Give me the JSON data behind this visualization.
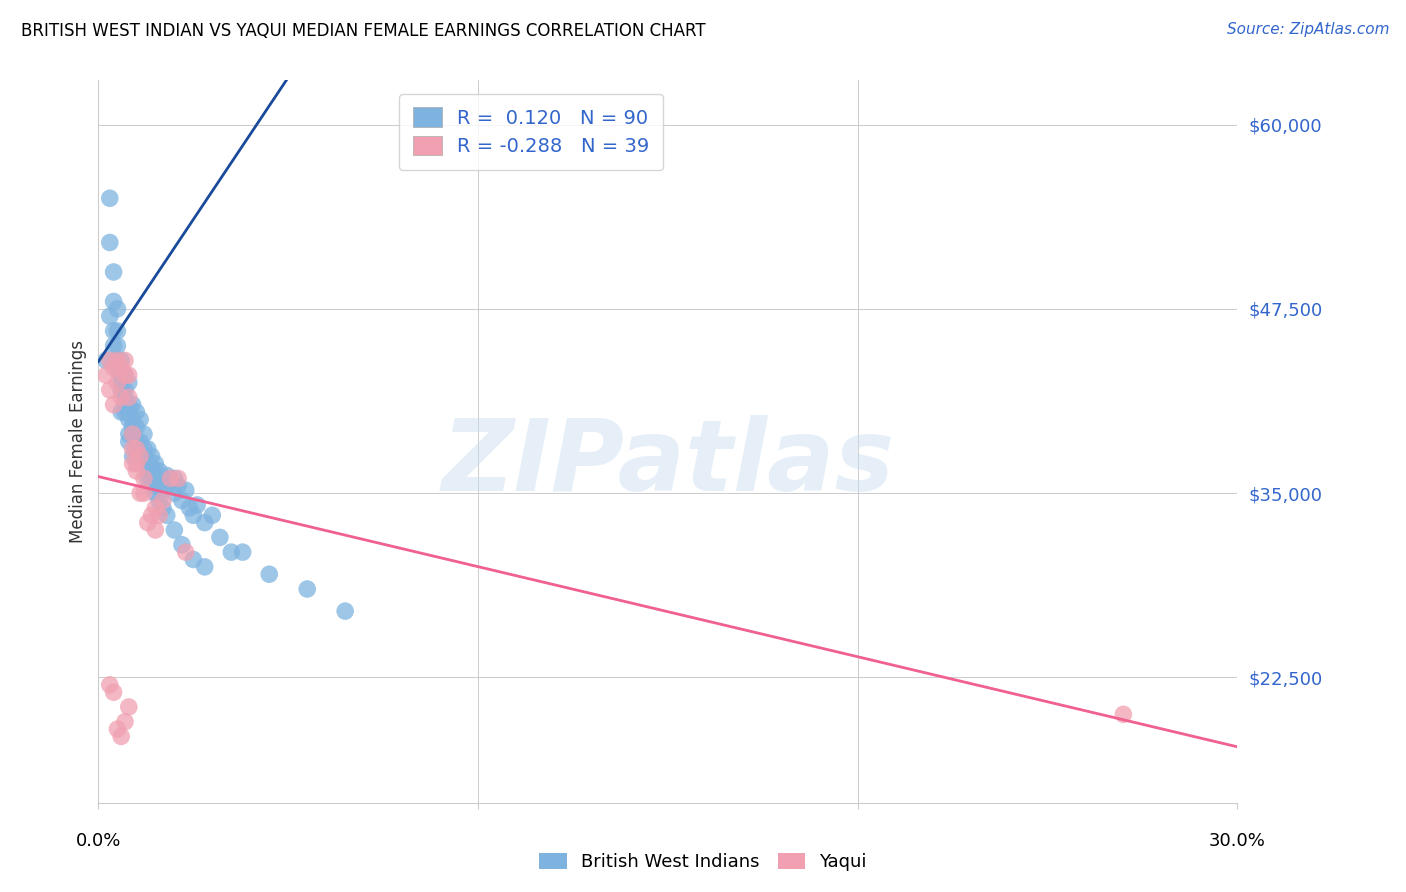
{
  "title": "BRITISH WEST INDIAN VS YAQUI MEDIAN FEMALE EARNINGS CORRELATION CHART",
  "source": "Source: ZipAtlas.com",
  "ylabel": "Median Female Earnings",
  "y_ticks": [
    22500,
    35000,
    47500,
    60000
  ],
  "y_tick_labels": [
    "$22,500",
    "$35,000",
    "$47,500",
    "$60,000"
  ],
  "x_min": 0.0,
  "x_max": 30.0,
  "y_min": 14000,
  "y_max": 63000,
  "watermark_text": "ZIPatlas",
  "blue_color": "#7EB3E0",
  "blue_line_color": "#1A4A9A",
  "pink_color": "#F0A0B0",
  "pink_line_color": "#F06090",
  "dashed_line_color": "#A0C4E8",
  "blue_R": 0.12,
  "blue_N": 90,
  "pink_R": -0.288,
  "pink_N": 39,
  "blue_x": [
    0.2,
    0.3,
    0.3,
    0.4,
    0.4,
    0.4,
    0.5,
    0.5,
    0.5,
    0.6,
    0.6,
    0.6,
    0.6,
    0.7,
    0.7,
    0.7,
    0.8,
    0.8,
    0.8,
    0.8,
    0.9,
    0.9,
    0.9,
    1.0,
    1.0,
    1.0,
    1.0,
    1.1,
    1.1,
    1.1,
    1.2,
    1.2,
    1.2,
    1.3,
    1.3,
    1.3,
    1.4,
    1.4,
    1.4,
    1.5,
    1.5,
    1.5,
    1.6,
    1.6,
    1.7,
    1.7,
    1.8,
    1.8,
    1.9,
    2.0,
    2.0,
    2.1,
    2.2,
    2.3,
    2.4,
    2.5,
    2.6,
    2.8,
    3.0,
    3.5,
    0.3,
    0.4,
    0.5,
    0.6,
    0.7,
    0.8,
    0.9,
    1.0,
    1.1,
    1.2,
    1.3,
    1.4,
    1.5,
    1.6,
    1.7,
    1.8,
    2.0,
    2.2,
    2.5,
    2.8,
    3.2,
    3.8,
    4.5,
    5.5,
    6.5,
    0.5,
    0.6,
    0.7,
    0.8,
    0.9
  ],
  "blue_y": [
    44000,
    55000,
    52000,
    50000,
    48000,
    46000,
    47500,
    45000,
    43500,
    44000,
    43000,
    42000,
    40500,
    43000,
    42000,
    40500,
    42500,
    41000,
    40000,
    38500,
    41000,
    40000,
    39000,
    40500,
    39500,
    38500,
    37500,
    40000,
    38500,
    37500,
    39000,
    38000,
    37000,
    38000,
    37200,
    36500,
    37500,
    36800,
    36000,
    37000,
    36200,
    35500,
    36500,
    35800,
    36000,
    35200,
    36200,
    35500,
    35800,
    36000,
    35000,
    35500,
    34500,
    35200,
    34000,
    33500,
    34200,
    33000,
    33500,
    31000,
    47000,
    45000,
    44000,
    42500,
    41500,
    40500,
    39500,
    38500,
    37500,
    37000,
    36000,
    35500,
    35000,
    34500,
    34000,
    33500,
    32500,
    31500,
    30500,
    30000,
    32000,
    31000,
    29500,
    28500,
    27000,
    46000,
    43000,
    41000,
    39000,
    37500
  ],
  "pink_x": [
    0.2,
    0.3,
    0.3,
    0.4,
    0.4,
    0.5,
    0.5,
    0.6,
    0.6,
    0.7,
    0.7,
    0.8,
    0.8,
    0.9,
    0.9,
    0.9,
    1.0,
    1.0,
    1.1,
    1.2,
    1.3,
    1.4,
    1.5,
    1.5,
    1.6,
    1.7,
    1.9,
    2.1,
    2.3,
    0.3,
    0.4,
    0.5,
    0.6,
    0.7,
    0.8,
    1.0,
    1.1,
    1.2,
    27.0
  ],
  "pink_y": [
    43000,
    44000,
    42000,
    43500,
    41000,
    44000,
    42500,
    43500,
    41500,
    44000,
    43000,
    43000,
    41500,
    39000,
    38000,
    37000,
    38000,
    36500,
    35000,
    35000,
    33000,
    33500,
    32500,
    34000,
    33500,
    34500,
    36000,
    36000,
    31000,
    22000,
    21500,
    19000,
    18500,
    19500,
    20500,
    37000,
    37500,
    36000,
    20000
  ]
}
